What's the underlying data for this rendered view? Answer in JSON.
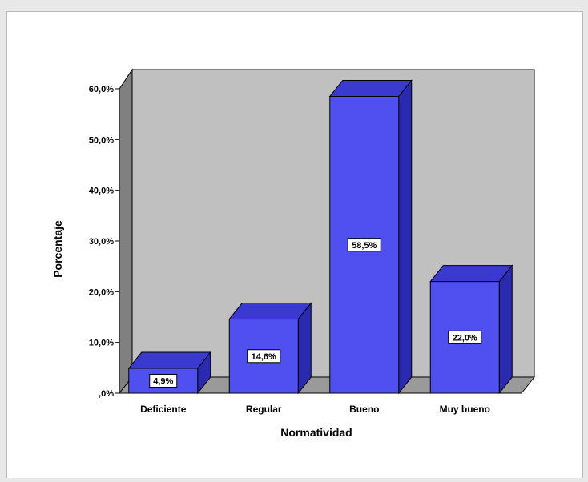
{
  "chart_data": {
    "type": "bar",
    "three_d": true,
    "categories": [
      "Deficiente",
      "Regular",
      "Bueno",
      "Muy bueno"
    ],
    "values": [
      4.9,
      14.6,
      58.5,
      22.0
    ],
    "data_labels": [
      "4,9%",
      "14,6%",
      "58,5%",
      "22,0%"
    ],
    "xlabel": "Normatividad",
    "ylabel": "Porcentaje",
    "ylim": [
      0,
      60
    ],
    "yticks": [
      0,
      10,
      20,
      30,
      40,
      50,
      60
    ],
    "ytick_labels": [
      ",0%",
      "10,0%",
      "20,0%",
      "30,0%",
      "40,0%",
      "50,0%",
      "60,0%"
    ],
    "grid": false,
    "legend": "none",
    "colors": {
      "bar_front": "#5050f0",
      "bar_side": "#2a2ab0",
      "bar_top": "#3a3ad0",
      "wall_back": "#c0c0c0",
      "wall_side": "#808080",
      "floor": "#9a9a9a",
      "edge": "#000000",
      "label_box": "#ffffff"
    }
  }
}
